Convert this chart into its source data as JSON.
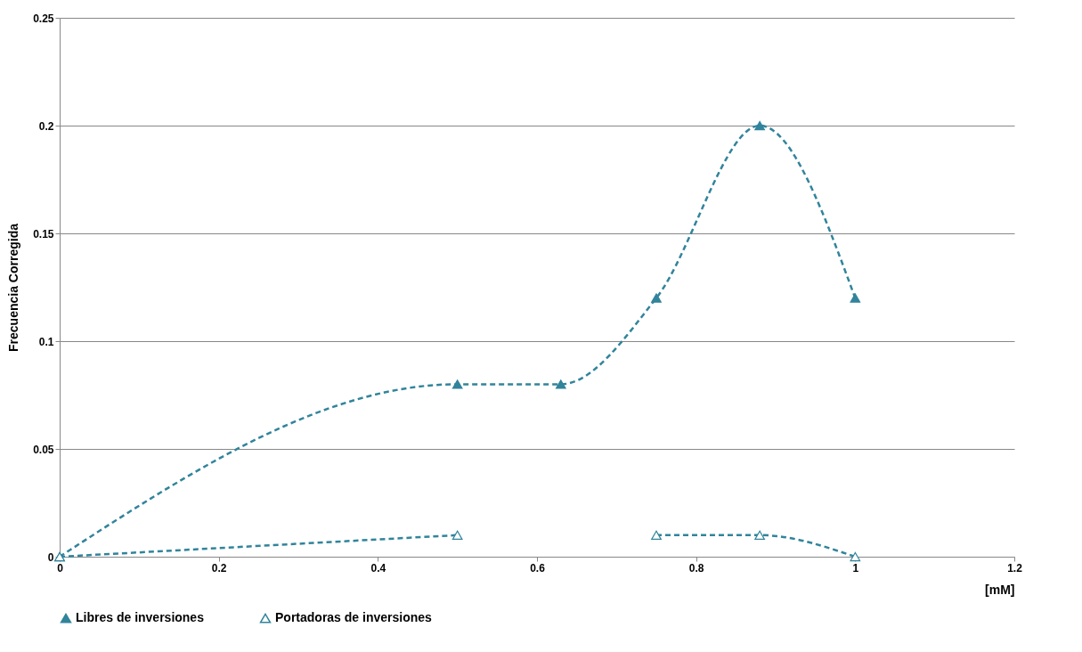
{
  "chart_data": {
    "type": "line",
    "xlabel": "[mM]",
    "ylabel": "Frecuencia Corregida",
    "xlim": [
      0,
      1.2
    ],
    "xticks": [
      0,
      0.2,
      0.4,
      0.6,
      0.8,
      1,
      1.2
    ],
    "ylim": [
      0,
      0.25
    ],
    "yticks": [
      0,
      0.05,
      0.1,
      0.15,
      0.2,
      0.25
    ],
    "grid": "y",
    "legend": "bottom",
    "marker": "triangle",
    "line_style": "dashed",
    "series": [
      {
        "name": "Libres de inversiones",
        "color": "#31849b",
        "marker": "triangle",
        "x": [
          0,
          0.5,
          0.63,
          0.75,
          0.88,
          1
        ],
        "values": [
          0,
          0.08,
          0.08,
          0.12,
          0.2,
          0.12
        ]
      },
      {
        "name": "Portadoras de inversiones",
        "color": "#31849b",
        "marker": "triangle-open",
        "x": [
          0,
          0.5,
          0.63,
          0.75,
          0.88,
          1
        ],
        "values": [
          0,
          0.01,
          null,
          0.01,
          0.01,
          0
        ]
      }
    ]
  }
}
